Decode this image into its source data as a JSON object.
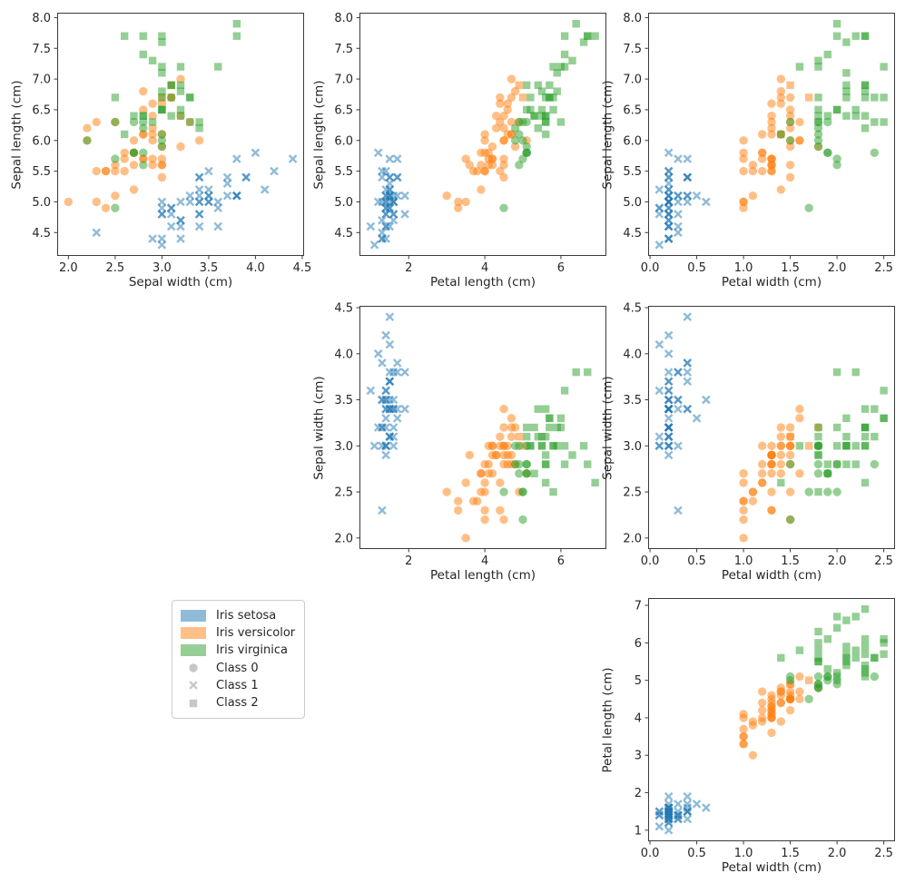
{
  "style": {
    "species_colors": [
      "#1f77b4",
      "#ff7f0e",
      "#2ca02c"
    ],
    "marker_alpha": 0.5,
    "legend_marker_color": "#c7c7c7",
    "text_color": "#262626",
    "spine_color": "#3a3a3a",
    "background": "#ffffff"
  },
  "legend": {
    "items": [
      {
        "type": "patch",
        "color_index": 0,
        "label": "Iris setosa"
      },
      {
        "type": "patch",
        "color_index": 1,
        "label": "Iris versicolor"
      },
      {
        "type": "patch",
        "color_index": 2,
        "label": "Iris virginica"
      },
      {
        "type": "marker",
        "marker": "circle",
        "label": "Class 0"
      },
      {
        "type": "marker",
        "marker": "x",
        "label": "Class 1"
      },
      {
        "type": "marker",
        "marker": "square",
        "label": "Class 2"
      }
    ]
  },
  "subplots": [
    {
      "id": "sepal-width-vs-sepal-length",
      "row": 0,
      "col": 0,
      "xf": 1,
      "yf": 0,
      "xlabel": "Sepal width (cm)",
      "ylabel": "Sepal length (cm)",
      "xlim": [
        1.88,
        4.52
      ],
      "ylim": [
        4.12,
        8.08
      ],
      "xticks": [
        2.0,
        2.5,
        3.0,
        3.5,
        4.0,
        4.5
      ],
      "xtick_labels": [
        "2.0",
        "2.5",
        "3.0",
        "3.5",
        "4.0",
        "4.5"
      ],
      "yticks": [
        4.5,
        5.0,
        5.5,
        6.0,
        6.5,
        7.0,
        7.5,
        8.0
      ],
      "ytick_labels": [
        "4.5",
        "5.0",
        "5.5",
        "6.0",
        "6.5",
        "7.0",
        "7.5",
        "8.0"
      ]
    },
    {
      "id": "petal-length-vs-sepal-length",
      "row": 0,
      "col": 1,
      "xf": 2,
      "yf": 0,
      "xlabel": "Petal length (cm)",
      "ylabel": "Sepal length (cm)",
      "xlim": [
        0.705,
        7.195
      ],
      "ylim": [
        4.12,
        8.08
      ],
      "xticks": [
        2,
        4,
        6
      ],
      "xtick_labels": [
        "2",
        "4",
        "6"
      ],
      "yticks": [
        4.5,
        5.0,
        5.5,
        6.0,
        6.5,
        7.0,
        7.5,
        8.0
      ],
      "ytick_labels": [
        "4.5",
        "5.0",
        "5.5",
        "6.0",
        "6.5",
        "7.0",
        "7.5",
        "8.0"
      ]
    },
    {
      "id": "petal-width-vs-sepal-length",
      "row": 0,
      "col": 2,
      "xf": 3,
      "yf": 0,
      "xlabel": "Petal width (cm)",
      "ylabel": "Sepal length (cm)",
      "xlim": [
        -0.02,
        2.62
      ],
      "ylim": [
        4.12,
        8.08
      ],
      "xticks": [
        0.0,
        0.5,
        1.0,
        1.5,
        2.0,
        2.5
      ],
      "xtick_labels": [
        "0.0",
        "0.5",
        "1.0",
        "1.5",
        "2.0",
        "2.5"
      ],
      "yticks": [
        4.5,
        5.0,
        5.5,
        6.0,
        6.5,
        7.0,
        7.5,
        8.0
      ],
      "ytick_labels": [
        "4.5",
        "5.0",
        "5.5",
        "6.0",
        "6.5",
        "7.0",
        "7.5",
        "8.0"
      ]
    },
    {
      "id": "petal-length-vs-sepal-width",
      "row": 1,
      "col": 1,
      "xf": 2,
      "yf": 1,
      "xlabel": "Petal length (cm)",
      "ylabel": "Sepal width (cm)",
      "xlim": [
        0.705,
        7.195
      ],
      "ylim": [
        1.88,
        4.52
      ],
      "xticks": [
        2,
        4,
        6
      ],
      "xtick_labels": [
        "2",
        "4",
        "6"
      ],
      "yticks": [
        2.0,
        2.5,
        3.0,
        3.5,
        4.0,
        4.5
      ],
      "ytick_labels": [
        "2.0",
        "2.5",
        "3.0",
        "3.5",
        "4.0",
        "4.5"
      ]
    },
    {
      "id": "petal-width-vs-sepal-width",
      "row": 1,
      "col": 2,
      "xf": 3,
      "yf": 1,
      "xlabel": "Petal width (cm)",
      "ylabel": "Sepal width (cm)",
      "xlim": [
        -0.02,
        2.62
      ],
      "ylim": [
        1.88,
        4.52
      ],
      "xticks": [
        0.0,
        0.5,
        1.0,
        1.5,
        2.0,
        2.5
      ],
      "xtick_labels": [
        "0.0",
        "0.5",
        "1.0",
        "1.5",
        "2.0",
        "2.5"
      ],
      "yticks": [
        2.0,
        2.5,
        3.0,
        3.5,
        4.0,
        4.5
      ],
      "ytick_labels": [
        "2.0",
        "2.5",
        "3.0",
        "3.5",
        "4.0",
        "4.5"
      ]
    },
    {
      "id": "petal-width-vs-petal-length",
      "row": 2,
      "col": 2,
      "xf": 3,
      "yf": 2,
      "xlabel": "Petal width (cm)",
      "ylabel": "Petal length (cm)",
      "xlim": [
        -0.02,
        2.62
      ],
      "ylim": [
        0.705,
        7.195
      ],
      "xticks": [
        0.0,
        0.5,
        1.0,
        1.5,
        2.0,
        2.5
      ],
      "xtick_labels": [
        "0.0",
        "0.5",
        "1.0",
        "1.5",
        "2.0",
        "2.5"
      ],
      "yticks": [
        1,
        2,
        3,
        4,
        5,
        6,
        7
      ],
      "ytick_labels": [
        "1",
        "2",
        "3",
        "4",
        "5",
        "6",
        "7"
      ]
    }
  ],
  "chart_data": {
    "type": "scatter",
    "features": [
      "Sepal length (cm)",
      "Sepal width (cm)",
      "Petal length (cm)",
      "Petal width (cm)"
    ],
    "species": [
      "Iris setosa",
      "Iris versicolor",
      "Iris virginica"
    ],
    "classes": [
      {
        "id": 0,
        "marker": "circle",
        "label": "Class 0"
      },
      {
        "id": 1,
        "marker": "x",
        "label": "Class 1"
      },
      {
        "id": 2,
        "marker": "square",
        "label": "Class 2"
      }
    ],
    "point_format": [
      "sepal_length",
      "sepal_width",
      "petal_length",
      "petal_width",
      "species_index",
      "predicted_class"
    ],
    "points": [
      [
        5.1,
        3.5,
        1.4,
        0.2,
        0,
        1
      ],
      [
        4.9,
        3.0,
        1.4,
        0.2,
        0,
        1
      ],
      [
        4.7,
        3.2,
        1.3,
        0.2,
        0,
        1
      ],
      [
        4.6,
        3.1,
        1.5,
        0.2,
        0,
        1
      ],
      [
        5.0,
        3.6,
        1.4,
        0.2,
        0,
        1
      ],
      [
        5.4,
        3.9,
        1.7,
        0.4,
        0,
        1
      ],
      [
        4.6,
        3.4,
        1.4,
        0.3,
        0,
        1
      ],
      [
        5.0,
        3.4,
        1.5,
        0.2,
        0,
        1
      ],
      [
        4.4,
        2.9,
        1.4,
        0.2,
        0,
        1
      ],
      [
        4.9,
        3.1,
        1.5,
        0.1,
        0,
        1
      ],
      [
        5.4,
        3.7,
        1.5,
        0.2,
        0,
        1
      ],
      [
        4.8,
        3.4,
        1.6,
        0.2,
        0,
        1
      ],
      [
        4.8,
        3.0,
        1.4,
        0.1,
        0,
        1
      ],
      [
        4.3,
        3.0,
        1.1,
        0.1,
        0,
        1
      ],
      [
        5.8,
        4.0,
        1.2,
        0.2,
        0,
        1
      ],
      [
        5.7,
        4.4,
        1.5,
        0.4,
        0,
        1
      ],
      [
        5.4,
        3.9,
        1.3,
        0.4,
        0,
        1
      ],
      [
        5.1,
        3.5,
        1.4,
        0.3,
        0,
        1
      ],
      [
        5.7,
        3.8,
        1.7,
        0.3,
        0,
        1
      ],
      [
        5.1,
        3.8,
        1.5,
        0.3,
        0,
        1
      ],
      [
        5.4,
        3.4,
        1.7,
        0.2,
        0,
        1
      ],
      [
        5.1,
        3.7,
        1.5,
        0.4,
        0,
        1
      ],
      [
        4.6,
        3.6,
        1.0,
        0.2,
        0,
        1
      ],
      [
        5.1,
        3.3,
        1.7,
        0.5,
        0,
        1
      ],
      [
        4.8,
        3.4,
        1.9,
        0.2,
        0,
        1
      ],
      [
        5.0,
        3.0,
        1.6,
        0.2,
        0,
        1
      ],
      [
        5.0,
        3.4,
        1.6,
        0.4,
        0,
        1
      ],
      [
        5.2,
        3.5,
        1.5,
        0.2,
        0,
        1
      ],
      [
        5.2,
        3.4,
        1.4,
        0.2,
        0,
        1
      ],
      [
        4.7,
        3.2,
        1.6,
        0.2,
        0,
        1
      ],
      [
        4.8,
        3.1,
        1.6,
        0.2,
        0,
        1
      ],
      [
        5.4,
        3.4,
        1.5,
        0.4,
        0,
        1
      ],
      [
        5.2,
        4.1,
        1.5,
        0.1,
        0,
        1
      ],
      [
        5.5,
        4.2,
        1.4,
        0.2,
        0,
        1
      ],
      [
        4.9,
        3.1,
        1.5,
        0.2,
        0,
        1
      ],
      [
        5.0,
        3.2,
        1.2,
        0.2,
        0,
        1
      ],
      [
        5.5,
        3.5,
        1.3,
        0.2,
        0,
        1
      ],
      [
        4.9,
        3.6,
        1.4,
        0.1,
        0,
        1
      ],
      [
        4.4,
        3.0,
        1.3,
        0.2,
        0,
        1
      ],
      [
        5.1,
        3.4,
        1.5,
        0.2,
        0,
        1
      ],
      [
        5.0,
        3.5,
        1.3,
        0.3,
        0,
        1
      ],
      [
        4.5,
        2.3,
        1.3,
        0.3,
        0,
        1
      ],
      [
        4.4,
        3.2,
        1.3,
        0.2,
        0,
        1
      ],
      [
        5.0,
        3.5,
        1.6,
        0.6,
        0,
        1
      ],
      [
        5.1,
        3.8,
        1.9,
        0.4,
        0,
        1
      ],
      [
        4.8,
        3.0,
        1.4,
        0.3,
        0,
        1
      ],
      [
        5.1,
        3.8,
        1.6,
        0.2,
        0,
        1
      ],
      [
        4.6,
        3.2,
        1.4,
        0.2,
        0,
        1
      ],
      [
        5.3,
        3.7,
        1.5,
        0.2,
        0,
        1
      ],
      [
        5.0,
        3.3,
        1.4,
        0.2,
        0,
        1
      ],
      [
        7.0,
        3.2,
        4.7,
        1.4,
        1,
        0
      ],
      [
        6.4,
        3.2,
        4.5,
        1.5,
        1,
        0
      ],
      [
        6.9,
        3.1,
        4.9,
        1.5,
        1,
        2
      ],
      [
        5.5,
        2.3,
        4.0,
        1.3,
        1,
        0
      ],
      [
        6.5,
        2.8,
        4.6,
        1.5,
        1,
        0
      ],
      [
        5.7,
        2.8,
        4.5,
        1.3,
        1,
        0
      ],
      [
        6.3,
        3.3,
        4.7,
        1.6,
        1,
        0
      ],
      [
        4.9,
        2.4,
        3.3,
        1.0,
        1,
        0
      ],
      [
        6.6,
        2.9,
        4.6,
        1.3,
        1,
        0
      ],
      [
        5.2,
        2.7,
        3.9,
        1.4,
        1,
        0
      ],
      [
        5.0,
        2.0,
        3.5,
        1.0,
        1,
        0
      ],
      [
        5.9,
        3.0,
        4.2,
        1.5,
        1,
        0
      ],
      [
        6.0,
        2.2,
        4.0,
        1.0,
        1,
        0
      ],
      [
        6.1,
        2.9,
        4.7,
        1.4,
        1,
        0
      ],
      [
        5.6,
        2.9,
        3.6,
        1.3,
        1,
        0
      ],
      [
        6.7,
        3.1,
        4.4,
        1.4,
        1,
        0
      ],
      [
        5.6,
        3.0,
        4.5,
        1.5,
        1,
        0
      ],
      [
        5.8,
        2.7,
        4.1,
        1.0,
        1,
        0
      ],
      [
        6.2,
        2.2,
        4.5,
        1.5,
        1,
        0
      ],
      [
        5.6,
        2.5,
        3.9,
        1.1,
        1,
        0
      ],
      [
        5.9,
        3.2,
        4.8,
        1.8,
        1,
        0
      ],
      [
        6.1,
        2.8,
        4.0,
        1.3,
        1,
        0
      ],
      [
        6.3,
        2.5,
        4.9,
        1.5,
        1,
        0
      ],
      [
        6.1,
        2.8,
        4.7,
        1.2,
        1,
        0
      ],
      [
        6.4,
        2.9,
        4.3,
        1.3,
        1,
        0
      ],
      [
        6.6,
        3.0,
        4.4,
        1.4,
        1,
        0
      ],
      [
        6.8,
        2.8,
        4.8,
        1.4,
        1,
        0
      ],
      [
        6.7,
        3.0,
        5.0,
        1.7,
        1,
        2
      ],
      [
        6.0,
        2.9,
        4.5,
        1.5,
        1,
        0
      ],
      [
        5.7,
        2.6,
        3.5,
        1.0,
        1,
        0
      ],
      [
        5.5,
        2.4,
        3.8,
        1.1,
        1,
        0
      ],
      [
        5.5,
        2.4,
        3.7,
        1.0,
        1,
        0
      ],
      [
        5.8,
        2.7,
        3.9,
        1.2,
        1,
        0
      ],
      [
        6.0,
        2.7,
        5.1,
        1.6,
        1,
        0
      ],
      [
        5.4,
        3.0,
        4.5,
        1.5,
        1,
        0
      ],
      [
        6.0,
        3.4,
        4.5,
        1.6,
        1,
        0
      ],
      [
        6.7,
        3.1,
        4.7,
        1.5,
        1,
        0
      ],
      [
        6.3,
        2.3,
        4.4,
        1.3,
        1,
        0
      ],
      [
        5.6,
        3.0,
        4.1,
        1.3,
        1,
        0
      ],
      [
        5.5,
        2.5,
        4.0,
        1.3,
        1,
        0
      ],
      [
        5.5,
        2.6,
        4.4,
        1.2,
        1,
        0
      ],
      [
        6.1,
        3.0,
        4.6,
        1.4,
        1,
        0
      ],
      [
        5.8,
        2.6,
        4.0,
        1.2,
        1,
        0
      ],
      [
        5.0,
        2.3,
        3.3,
        1.0,
        1,
        0
      ],
      [
        5.6,
        2.7,
        4.2,
        1.3,
        1,
        0
      ],
      [
        5.7,
        3.0,
        4.2,
        1.2,
        1,
        0
      ],
      [
        5.7,
        2.9,
        4.2,
        1.3,
        1,
        0
      ],
      [
        6.2,
        2.9,
        4.3,
        1.3,
        1,
        0
      ],
      [
        5.1,
        2.5,
        3.0,
        1.1,
        1,
        0
      ],
      [
        5.7,
        2.8,
        4.1,
        1.3,
        1,
        0
      ],
      [
        6.3,
        3.3,
        6.0,
        2.5,
        2,
        2
      ],
      [
        5.8,
        2.7,
        5.1,
        1.9,
        2,
        0
      ],
      [
        7.1,
        3.0,
        5.9,
        2.1,
        2,
        2
      ],
      [
        6.3,
        2.9,
        5.6,
        1.8,
        2,
        2
      ],
      [
        6.5,
        3.0,
        5.8,
        2.2,
        2,
        2
      ],
      [
        7.6,
        3.0,
        6.6,
        2.1,
        2,
        2
      ],
      [
        4.9,
        2.5,
        4.5,
        1.7,
        2,
        0
      ],
      [
        7.3,
        2.9,
        6.3,
        1.8,
        2,
        2
      ],
      [
        6.7,
        2.5,
        5.8,
        1.8,
        2,
        2
      ],
      [
        7.2,
        3.6,
        6.1,
        2.5,
        2,
        2
      ],
      [
        6.5,
        3.2,
        5.1,
        2.0,
        2,
        2
      ],
      [
        6.4,
        2.7,
        5.3,
        1.9,
        2,
        2
      ],
      [
        6.8,
        3.0,
        5.5,
        2.1,
        2,
        2
      ],
      [
        5.7,
        2.5,
        5.0,
        2.0,
        2,
        0
      ],
      [
        5.8,
        2.8,
        5.1,
        2.4,
        2,
        0
      ],
      [
        6.4,
        3.2,
        5.3,
        2.3,
        2,
        2
      ],
      [
        6.5,
        3.0,
        5.5,
        1.8,
        2,
        2
      ],
      [
        7.7,
        3.8,
        6.7,
        2.2,
        2,
        2
      ],
      [
        7.7,
        2.6,
        6.9,
        2.3,
        2,
        2
      ],
      [
        6.0,
        2.2,
        5.0,
        1.5,
        2,
        0
      ],
      [
        6.9,
        3.2,
        5.7,
        2.3,
        2,
        2
      ],
      [
        5.6,
        2.8,
        4.9,
        2.0,
        2,
        0
      ],
      [
        7.7,
        2.8,
        6.7,
        2.0,
        2,
        2
      ],
      [
        6.3,
        2.7,
        4.9,
        1.8,
        2,
        0
      ],
      [
        6.7,
        3.3,
        5.7,
        2.1,
        2,
        2
      ],
      [
        7.2,
        3.2,
        6.0,
        1.8,
        2,
        2
      ],
      [
        6.2,
        2.8,
        4.8,
        1.8,
        2,
        0
      ],
      [
        6.1,
        3.0,
        4.9,
        1.8,
        2,
        0
      ],
      [
        6.4,
        2.8,
        5.6,
        2.1,
        2,
        2
      ],
      [
        7.2,
        3.0,
        5.8,
        1.6,
        2,
        2
      ],
      [
        7.4,
        2.8,
        6.1,
        1.9,
        2,
        2
      ],
      [
        7.9,
        3.8,
        6.4,
        2.0,
        2,
        2
      ],
      [
        6.4,
        2.8,
        5.6,
        2.2,
        2,
        2
      ],
      [
        6.3,
        2.8,
        5.1,
        1.5,
        2,
        0
      ],
      [
        6.1,
        2.6,
        5.6,
        1.4,
        2,
        2
      ],
      [
        7.7,
        3.0,
        6.1,
        2.3,
        2,
        2
      ],
      [
        6.3,
        3.4,
        5.6,
        2.4,
        2,
        2
      ],
      [
        6.4,
        3.1,
        5.5,
        1.8,
        2,
        2
      ],
      [
        6.0,
        3.0,
        4.8,
        1.8,
        2,
        0
      ],
      [
        6.9,
        3.1,
        5.4,
        2.1,
        2,
        2
      ],
      [
        6.7,
        3.1,
        5.6,
        2.4,
        2,
        2
      ],
      [
        6.9,
        3.1,
        5.1,
        2.3,
        2,
        2
      ],
      [
        5.8,
        2.7,
        5.1,
        1.9,
        2,
        0
      ],
      [
        6.8,
        3.2,
        5.9,
        2.3,
        2,
        2
      ],
      [
        6.7,
        3.3,
        5.7,
        2.5,
        2,
        2
      ],
      [
        6.7,
        3.0,
        5.2,
        2.3,
        2,
        2
      ],
      [
        6.3,
        2.5,
        5.0,
        1.9,
        2,
        0
      ],
      [
        6.5,
        3.0,
        5.2,
        2.0,
        2,
        2
      ],
      [
        6.2,
        3.4,
        5.4,
        2.3,
        2,
        2
      ],
      [
        5.9,
        3.0,
        5.1,
        1.8,
        2,
        0
      ]
    ]
  }
}
